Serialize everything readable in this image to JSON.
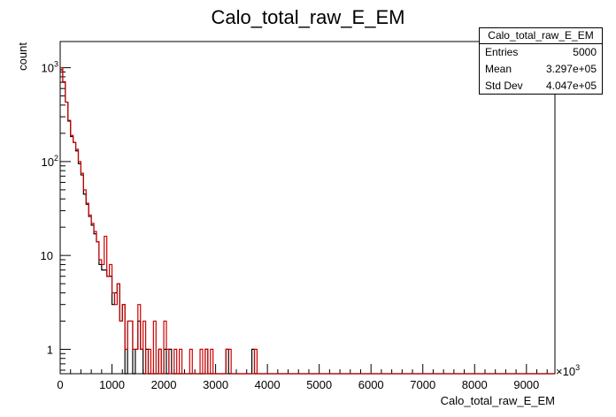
{
  "chart_data": {
    "type": "histogram",
    "title": "Calo_total_raw_E_EM",
    "xlabel": "Calo_total_raw_E_EM",
    "ylabel": "count",
    "x_exponent_label": "×10",
    "x_exponent_power": "3",
    "xlim": [
      0,
      9550
    ],
    "ylim": [
      0.55,
      1900
    ],
    "log_y": true,
    "bin_width": 50,
    "x_ticks": [
      0,
      1000,
      2000,
      3000,
      4000,
      5000,
      6000,
      7000,
      8000,
      9000
    ],
    "x_tick_labels": [
      "0",
      "1000",
      "2000",
      "3000",
      "4000",
      "5000",
      "6000",
      "7000",
      "8000",
      "9000"
    ],
    "y_major_ticks": [
      1,
      10,
      100,
      1000
    ],
    "y_tick_labels": [
      "1",
      "10",
      "10",
      "10"
    ],
    "y_tick_exponents": [
      "",
      "",
      "2",
      "3"
    ],
    "series": [
      {
        "color": "#000000",
        "values": [
          950,
          700,
          430,
          270,
          185,
          160,
          130,
          95,
          72,
          45,
          35,
          26,
          21,
          17,
          14,
          8,
          7,
          7,
          6,
          6,
          3,
          4,
          5,
          2,
          3,
          0,
          2,
          2,
          0,
          1,
          2,
          1,
          0,
          1,
          0,
          0,
          0,
          0,
          1,
          0,
          1,
          0,
          1,
          0,
          0,
          0,
          0,
          0,
          0,
          0,
          0,
          0,
          0,
          0,
          0,
          0,
          1,
          0,
          0,
          0,
          0,
          0,
          0,
          0,
          1,
          0,
          0,
          0,
          0,
          0,
          0,
          0,
          0,
          0,
          1,
          0,
          0,
          0,
          0,
          0,
          0,
          0,
          0,
          0,
          0,
          0,
          0,
          0,
          0,
          0,
          0,
          0,
          0,
          0,
          0,
          0,
          0,
          0,
          0,
          0,
          0,
          0,
          0,
          0,
          0,
          0,
          0,
          0,
          0,
          0,
          0,
          0,
          0,
          0,
          0,
          0,
          0,
          0,
          0,
          0,
          0,
          0,
          0,
          0,
          0,
          0,
          0,
          0,
          0,
          0,
          0,
          0,
          0,
          0,
          0,
          0,
          0,
          0,
          0,
          0,
          0,
          0,
          0,
          0,
          0,
          0,
          0,
          0,
          0,
          0,
          0,
          0,
          0,
          0,
          0,
          0,
          0,
          0,
          0,
          0,
          0,
          0,
          0,
          0,
          0,
          0,
          0,
          0,
          0,
          0,
          0,
          0,
          0,
          0,
          0,
          0,
          0,
          0,
          0,
          0,
          0,
          0,
          0,
          0,
          0,
          0,
          0,
          0,
          0,
          0,
          0
        ]
      },
      {
        "color": "#cc0000",
        "values": [
          1000,
          710,
          430,
          275,
          190,
          160,
          135,
          100,
          75,
          50,
          36,
          27,
          22,
          18,
          14,
          9,
          8,
          16,
          6,
          8,
          4,
          3,
          5,
          2,
          3,
          1,
          2,
          2,
          1,
          1,
          3,
          1,
          2,
          0,
          1,
          0,
          2,
          0,
          1,
          0,
          2,
          1,
          0,
          0,
          1,
          0,
          1,
          0,
          0,
          0,
          1,
          0,
          0,
          0,
          1,
          0,
          1,
          0,
          1,
          0,
          0,
          0,
          0,
          0,
          1,
          1,
          0,
          0,
          0,
          0,
          0,
          0,
          0,
          0,
          0,
          1,
          0,
          0,
          0,
          0,
          0,
          0,
          0,
          0,
          0,
          0,
          0,
          0,
          0,
          0,
          0,
          0,
          0,
          0,
          0,
          0,
          0,
          0,
          0,
          0,
          0,
          0,
          0,
          0,
          0,
          0,
          0,
          0,
          0,
          0,
          0,
          0,
          0,
          0,
          0,
          0,
          0,
          0,
          0,
          0,
          0,
          0,
          0,
          0,
          0,
          0,
          0,
          0,
          0,
          0,
          0,
          0,
          0,
          0,
          0,
          0,
          0,
          0,
          0,
          0,
          0,
          0,
          0,
          0,
          0,
          0,
          0,
          0,
          0,
          0,
          0,
          0,
          0,
          0,
          0,
          0,
          0,
          0,
          0,
          0,
          0,
          0,
          0,
          0,
          0,
          0,
          0,
          0,
          0,
          0,
          0,
          0,
          0,
          0,
          0,
          0,
          0,
          0,
          0,
          0,
          0,
          0,
          0,
          0,
          0,
          0,
          0,
          0,
          0,
          0,
          0
        ]
      }
    ]
  },
  "stats": {
    "title": "Calo_total_raw_E_EM",
    "rows": [
      {
        "label": "Entries",
        "value": "5000"
      },
      {
        "label": "Mean",
        "value": "3.297e+05"
      },
      {
        "label": "Std Dev",
        "value": "4.047e+05"
      }
    ]
  }
}
